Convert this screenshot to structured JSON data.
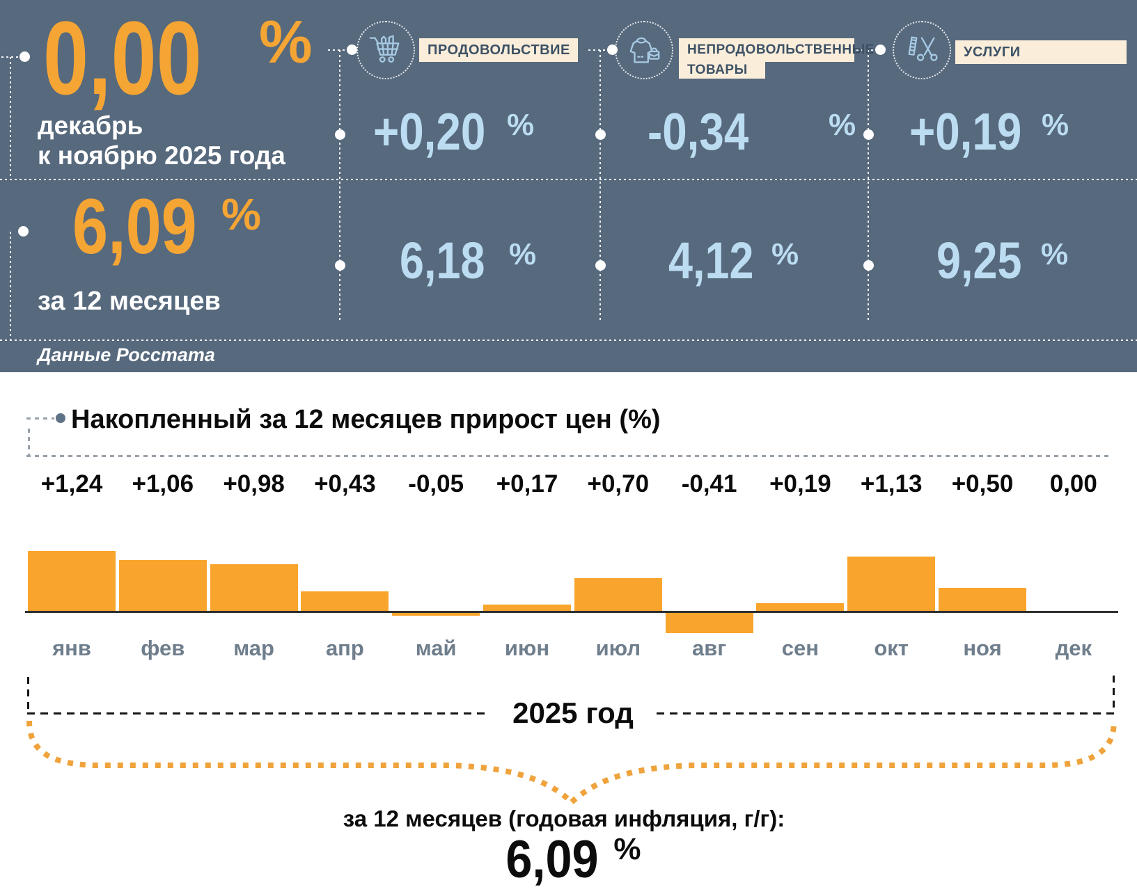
{
  "headline": {
    "monthly": {
      "value": "0,00",
      "unit": "%",
      "caption_line1": "декабрь",
      "caption_line2": "к ноябрю 2025 года"
    },
    "annual": {
      "value": "6,09",
      "unit": "%",
      "caption": "за 12 месяцев"
    },
    "source_note": "Данные Росстата"
  },
  "categories": [
    {
      "label": "ПРОДОВОЛЬСТВИЕ",
      "icon": "cart-icon",
      "monthly_value": "+0,20",
      "monthly_unit": "%",
      "annual_value": "6,18",
      "annual_unit": "%"
    },
    {
      "label_line1": "НЕПРОДОВОЛЬСТВЕННЫЕ",
      "label_line2": "ТОВАРЫ",
      "icon": "clothing-icon",
      "monthly_value": "-0,34",
      "monthly_unit": "%",
      "annual_value": "4,12",
      "annual_unit": "%"
    },
    {
      "label": "УСЛУГИ",
      "icon": "scissors-comb-icon",
      "monthly_value": "+0,19",
      "monthly_unit": "%",
      "annual_value": "9,25",
      "annual_unit": "%"
    }
  ],
  "chart_data": {
    "type": "bar",
    "title": "Накопленный за 12 месяцев прирост цен (%)",
    "categories": [
      "янв",
      "фев",
      "мар",
      "апр",
      "май",
      "июн",
      "июл",
      "авг",
      "сен",
      "окт",
      "ноя",
      "дек"
    ],
    "values": [
      1.24,
      1.06,
      0.98,
      0.43,
      -0.05,
      0.17,
      0.7,
      -0.41,
      0.19,
      1.13,
      0.5,
      0.0
    ],
    "value_labels": [
      "+1,24",
      "+1,06",
      "+0,98",
      "+0,43",
      "-0,05",
      "+0,17",
      "+0,70",
      "-0,41",
      "+0,19",
      "+1,13",
      "+0,50",
      "0,00"
    ],
    "xlabel": "",
    "ylabel": "",
    "ylim": [
      -0.5,
      1.4
    ],
    "grid": false,
    "legend": false,
    "bar_color": "#F9A42C",
    "baseline": 0
  },
  "footer": {
    "year_label": "2025 год",
    "annual_caption": "за 12 месяцев (годовая инфляция, г/г):",
    "annual_value": "6,09",
    "annual_unit": "%"
  },
  "colors": {
    "panel_background": "#57697D",
    "accent_orange": "#F5A534",
    "bar_orange": "#F9A42C",
    "brace_orange": "#EFA33C",
    "light_blue_value": "#BBDCF1",
    "icon_stroke": "#A7CAE4",
    "category_label_background": "#FAEEDB",
    "category_label_text": "#3D5165",
    "month_label_text": "#6F7E8C"
  }
}
